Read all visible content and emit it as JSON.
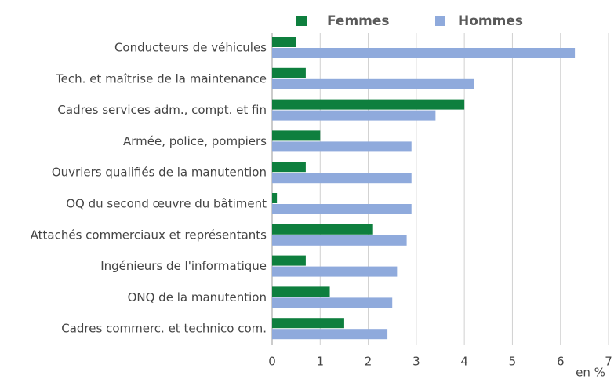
{
  "chart_data": {
    "type": "hbar",
    "categories": [
      "Conducteurs de véhicules",
      "Tech. et maîtrise de la maintenance",
      "Cadres services adm., compt. et fin",
      "Armée, police, pompiers",
      "Ouvriers qualifiés de la manutention",
      "OQ du second œuvre du bâtiment",
      "Attachés commerciaux et représentants",
      "Ingénieurs de l'informatique",
      "ONQ de la manutention",
      "Cadres commerc. et technico com."
    ],
    "series": [
      {
        "name": "Femmes",
        "color": "#0e7f3e",
        "values": [
          0.5,
          0.7,
          4.0,
          1.0,
          0.7,
          0.1,
          2.1,
          0.7,
          1.2,
          1.5
        ]
      },
      {
        "name": "Hommes",
        "color": "#8faadc",
        "values": [
          6.3,
          4.2,
          3.4,
          2.9,
          2.9,
          2.9,
          2.8,
          2.6,
          2.5,
          2.4
        ]
      }
    ],
    "xlabel": "en %",
    "xlim": [
      0,
      7
    ],
    "xticks": [
      0,
      1,
      2,
      3,
      4,
      5,
      6,
      7
    ],
    "grid": true,
    "legend": "top"
  }
}
